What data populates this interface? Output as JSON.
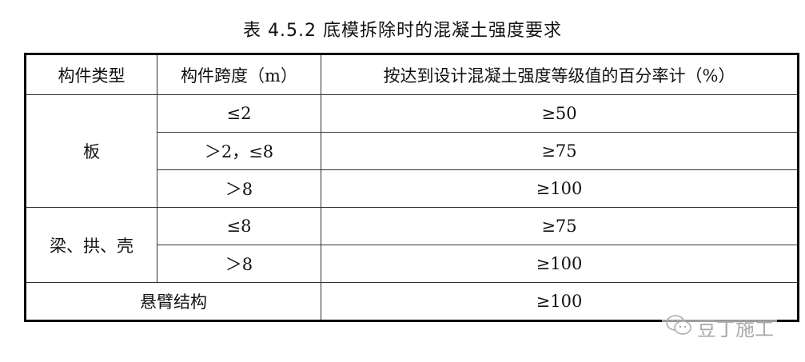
{
  "title": "表 4.5.2 底模拆除时的混凝土强度要求",
  "headers": [
    "构件类型",
    "构件跨度（m）",
    "按达到设计混凝土强度等级值的百分率计（%）"
  ],
  "groups": [
    {
      "type": "板",
      "rows": [
        {
          "span": "≤2",
          "percent": "≥50"
        },
        {
          "span": "＞2，≤8",
          "percent": "≥75"
        },
        {
          "span": "＞8",
          "percent": "≥100"
        }
      ]
    },
    {
      "type": "梁、拱、壳",
      "rows": [
        {
          "span": "≤8",
          "percent": "≥75"
        },
        {
          "span": "＞8",
          "percent": "≥100"
        }
      ]
    },
    {
      "type": "悬臂结构",
      "percent": "≥100"
    }
  ],
  "watermark": {
    "text": "豆丁施工",
    "icon": "wechat-icon"
  }
}
